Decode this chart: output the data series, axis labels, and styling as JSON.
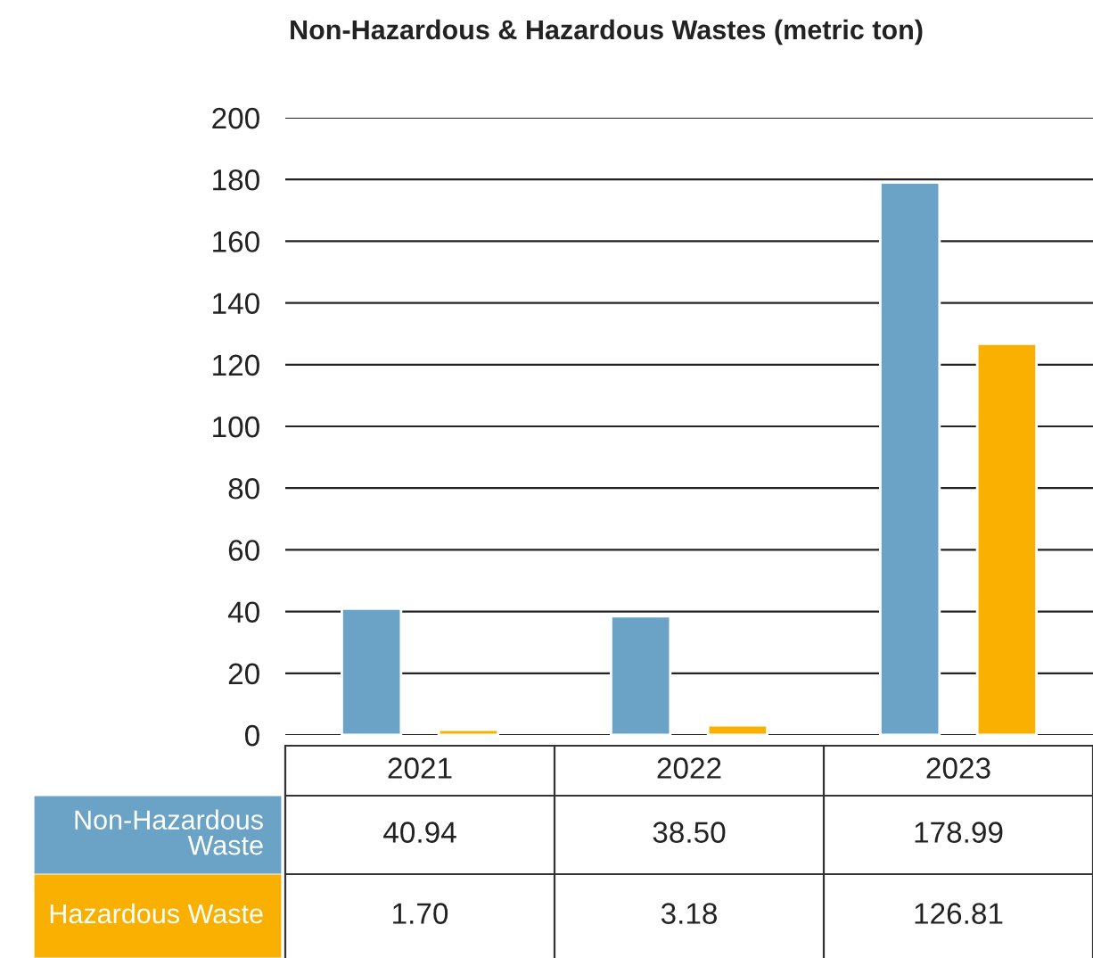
{
  "chart_data": {
    "type": "bar",
    "title": "Non-Hazardous & Hazardous Wastes (metric ton)",
    "categories": [
      "2021",
      "2022",
      "2023"
    ],
    "series": [
      {
        "name": "Non-Hazardous Waste",
        "color": "#6aa3c6",
        "values": [
          40.94,
          38.5,
          178.99
        ],
        "value_labels": [
          "40.94",
          "38.50",
          "178.99"
        ]
      },
      {
        "name": "Hazardous Waste",
        "color": "#f9b000",
        "values": [
          1.7,
          3.18,
          126.81
        ],
        "value_labels": [
          "1.70",
          "3.18",
          "126.81"
        ]
      }
    ],
    "ylim": [
      0,
      200
    ],
    "yticks": [
      0,
      20,
      40,
      60,
      80,
      100,
      120,
      140,
      160,
      180,
      200
    ],
    "grid": "y",
    "legend": false
  }
}
